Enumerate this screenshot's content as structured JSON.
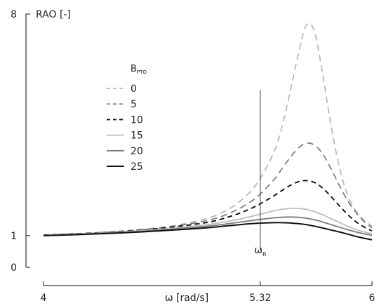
{
  "chart_data": {
    "type": "line",
    "title": "",
    "ylabel": "RAO [-]",
    "xlabel": "ω [rad/s]",
    "xlim": [
      4,
      6
    ],
    "ylim": [
      0,
      8
    ],
    "x_ticks": [
      {
        "value": 4,
        "label": "4"
      },
      {
        "value": 5.32,
        "label": "5.32"
      },
      {
        "value": 6,
        "label": "6"
      }
    ],
    "y_ticks": [
      {
        "value": 0,
        "label": "0"
      },
      {
        "value": 1,
        "label": "1"
      },
      {
        "value": 8,
        "label": "8"
      }
    ],
    "grid": false,
    "legend": {
      "title_main": "B",
      "title_sub": "PTO",
      "placement": "upper-left"
    },
    "vertical_marker": {
      "x": 5.32,
      "y_range": [
        0.55,
        5.6
      ],
      "label_main": "ω",
      "label_sub": "R"
    },
    "x": [
      4.0,
      4.2,
      4.4,
      4.6,
      4.8,
      5.0,
      5.1,
      5.2,
      5.3,
      5.4,
      5.45,
      5.5,
      5.55,
      5.6,
      5.65,
      5.7,
      5.75,
      5.8,
      5.85,
      5.9,
      5.95,
      6.0
    ],
    "series": [
      {
        "name": "0",
        "color": "#b4b4b4",
        "dash": "9,6",
        "width": 1.7,
        "values": [
          1.02,
          1.06,
          1.12,
          1.2,
          1.32,
          1.55,
          1.76,
          2.1,
          2.65,
          3.6,
          4.4,
          5.5,
          6.7,
          7.65,
          7.45,
          6.1,
          4.5,
          3.2,
          2.3,
          1.8,
          1.5,
          1.3
        ]
      },
      {
        "name": "5",
        "color": "#7a7a7a",
        "dash": "9,6",
        "width": 1.7,
        "values": [
          1.02,
          1.06,
          1.11,
          1.19,
          1.3,
          1.48,
          1.64,
          1.88,
          2.22,
          2.75,
          3.1,
          3.45,
          3.76,
          3.92,
          3.86,
          3.58,
          3.12,
          2.6,
          2.12,
          1.75,
          1.45,
          1.25
        ]
      },
      {
        "name": "10",
        "color": "#111111",
        "dash": "7,5",
        "width": 1.9,
        "values": [
          1.02,
          1.06,
          1.11,
          1.18,
          1.28,
          1.42,
          1.55,
          1.72,
          1.95,
          2.25,
          2.42,
          2.58,
          2.7,
          2.74,
          2.68,
          2.5,
          2.24,
          1.95,
          1.68,
          1.45,
          1.28,
          1.15
        ]
      },
      {
        "name": "15",
        "color": "#bdbdbd",
        "dash": "",
        "width": 1.8,
        "values": [
          1.01,
          1.05,
          1.1,
          1.16,
          1.24,
          1.35,
          1.43,
          1.53,
          1.65,
          1.78,
          1.83,
          1.86,
          1.86,
          1.83,
          1.76,
          1.66,
          1.54,
          1.42,
          1.3,
          1.2,
          1.12,
          1.06
        ]
      },
      {
        "name": "20",
        "color": "#7a7a7a",
        "dash": "",
        "width": 1.8,
        "values": [
          1.0,
          1.04,
          1.09,
          1.14,
          1.21,
          1.3,
          1.36,
          1.43,
          1.5,
          1.56,
          1.58,
          1.59,
          1.58,
          1.55,
          1.5,
          1.43,
          1.35,
          1.27,
          1.19,
          1.12,
          1.06,
          1.01
        ]
      },
      {
        "name": "25",
        "color": "#111111",
        "dash": "",
        "width": 2.0,
        "values": [
          1.0,
          1.03,
          1.07,
          1.12,
          1.18,
          1.25,
          1.3,
          1.35,
          1.39,
          1.41,
          1.41,
          1.4,
          1.38,
          1.35,
          1.3,
          1.24,
          1.18,
          1.12,
          1.05,
          0.98,
          0.92,
          0.87
        ]
      }
    ]
  }
}
